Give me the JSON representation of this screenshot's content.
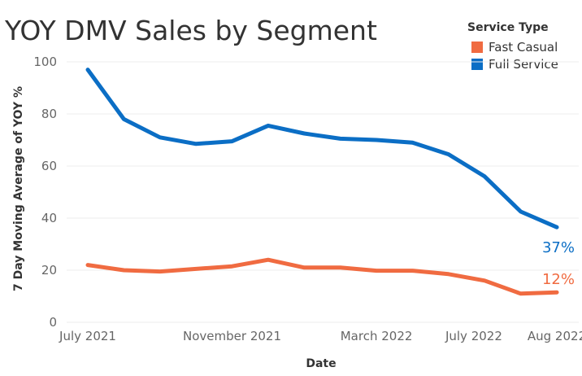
{
  "chart_data": {
    "type": "line",
    "title": "YOY DMV Sales by Segment",
    "xlabel": "Date",
    "ylabel": "7 Day Moving Average of YOY %",
    "ylim": [
      0,
      105
    ],
    "yticks": [
      0,
      20,
      40,
      60,
      80,
      100
    ],
    "grid": true,
    "x_tick_labels": [
      {
        "label": "July 2021",
        "index": 0
      },
      {
        "label": "November 2021",
        "index": 4
      },
      {
        "label": "March 2022",
        "index": 8
      },
      {
        "label": "July 2022",
        "index": 10.7
      },
      {
        "label": "Aug 2022",
        "index": 13
      }
    ],
    "point_count": 14,
    "legend": {
      "title": "Service Type",
      "position": "top-right"
    },
    "series": [
      {
        "name": "Fast Casual",
        "color": "#f06b41",
        "values": [
          22,
          20,
          19.5,
          20.5,
          21.5,
          24,
          21,
          21,
          19.8,
          19.8,
          18.5,
          16,
          11,
          11.5
        ],
        "end_label": "12%"
      },
      {
        "name": "Full Service",
        "color": "#0b6ec5",
        "values": [
          97,
          78,
          71,
          68.5,
          69.5,
          75.5,
          72.5,
          70.5,
          70,
          69,
          64.5,
          56,
          42.5,
          36.5
        ],
        "end_label": "37%"
      }
    ]
  }
}
